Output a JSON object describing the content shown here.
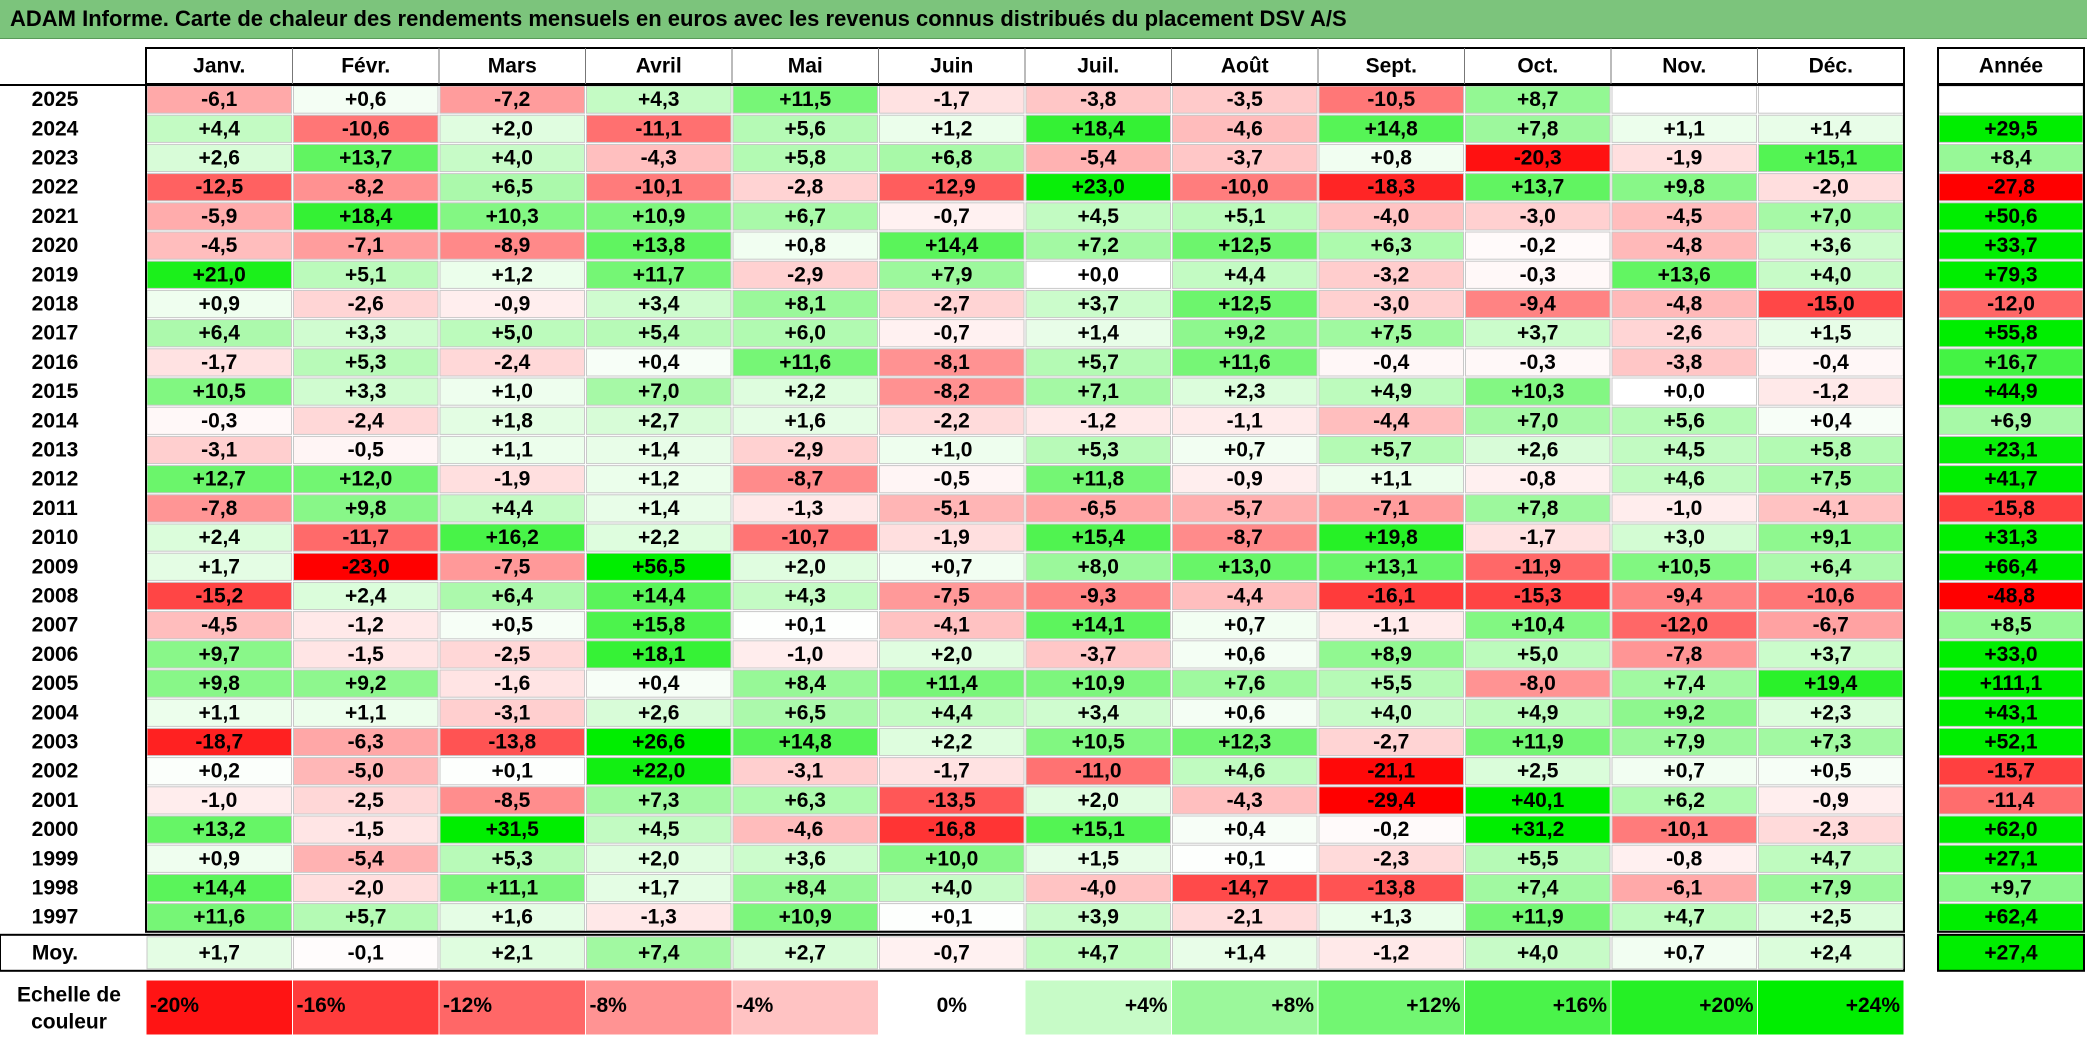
{
  "title": "ADAM Informe. Carte de chaleur des rendements mensuels en euros avec les revenus connus distribués du placement DSV A/S",
  "chart_data": {
    "type": "heatmap",
    "columns": [
      "Janv.",
      "Févr.",
      "Mars",
      "Avril",
      "Mai",
      "Juin",
      "Juil.",
      "Août",
      "Sept.",
      "Oct.",
      "Nov.",
      "Déc."
    ],
    "year_header": "Année",
    "rows": [
      {
        "year": "2025",
        "values": [
          "-6,1",
          "+0,6",
          "-7,2",
          "+4,3",
          "+11,5",
          "-1,7",
          "-3,8",
          "-3,5",
          "-10,5",
          "+8,7",
          null,
          null
        ],
        "annual": null
      },
      {
        "year": "2024",
        "values": [
          "+4,4",
          "-10,6",
          "+2,0",
          "-11,1",
          "+5,6",
          "+1,2",
          "+18,4",
          "-4,6",
          "+14,8",
          "+7,8",
          "+1,1",
          "+1,4"
        ],
        "annual": "+29,5"
      },
      {
        "year": "2023",
        "values": [
          "+2,6",
          "+13,7",
          "+4,0",
          "-4,3",
          "+5,8",
          "+6,8",
          "-5,4",
          "-3,7",
          "+0,8",
          "-20,3",
          "-1,9",
          "+15,1"
        ],
        "annual": "+8,4"
      },
      {
        "year": "2022",
        "values": [
          "-12,5",
          "-8,2",
          "+6,5",
          "-10,1",
          "-2,8",
          "-12,9",
          "+23,0",
          "-10,0",
          "-18,3",
          "+13,7",
          "+9,8",
          "-2,0"
        ],
        "annual": "-27,8"
      },
      {
        "year": "2021",
        "values": [
          "-5,9",
          "+18,4",
          "+10,3",
          "+10,9",
          "+6,7",
          "-0,7",
          "+4,5",
          "+5,1",
          "-4,0",
          "-3,0",
          "-4,5",
          "+7,0"
        ],
        "annual": "+50,6"
      },
      {
        "year": "2020",
        "values": [
          "-4,5",
          "-7,1",
          "-8,9",
          "+13,8",
          "+0,8",
          "+14,4",
          "+7,2",
          "+12,5",
          "+6,3",
          "-0,2",
          "-4,8",
          "+3,6"
        ],
        "annual": "+33,7"
      },
      {
        "year": "2019",
        "values": [
          "+21,0",
          "+5,1",
          "+1,2",
          "+11,7",
          "-2,9",
          "+7,9",
          "+0,0",
          "+4,4",
          "-3,2",
          "-0,3",
          "+13,6",
          "+4,0"
        ],
        "annual": "+79,3"
      },
      {
        "year": "2018",
        "values": [
          "+0,9",
          "-2,6",
          "-0,9",
          "+3,4",
          "+8,1",
          "-2,7",
          "+3,7",
          "+12,5",
          "-3,0",
          "-9,4",
          "-4,8",
          "-15,0"
        ],
        "annual": "-12,0"
      },
      {
        "year": "2017",
        "values": [
          "+6,4",
          "+3,3",
          "+5,0",
          "+5,4",
          "+6,0",
          "-0,7",
          "+1,4",
          "+9,2",
          "+7,5",
          "+3,7",
          "-2,6",
          "+1,5"
        ],
        "annual": "+55,8"
      },
      {
        "year": "2016",
        "values": [
          "-1,7",
          "+5,3",
          "-2,4",
          "+0,4",
          "+11,6",
          "-8,1",
          "+5,7",
          "+11,6",
          "-0,4",
          "-0,3",
          "-3,8",
          "-0,4"
        ],
        "annual": "+16,7"
      },
      {
        "year": "2015",
        "values": [
          "+10,5",
          "+3,3",
          "+1,0",
          "+7,0",
          "+2,2",
          "-8,2",
          "+7,1",
          "+2,3",
          "+4,9",
          "+10,3",
          "+0,0",
          "-1,2"
        ],
        "annual": "+44,9"
      },
      {
        "year": "2014",
        "values": [
          "-0,3",
          "-2,4",
          "+1,8",
          "+2,7",
          "+1,6",
          "-2,2",
          "-1,2",
          "-1,1",
          "-4,4",
          "+7,0",
          "+5,6",
          "+0,4"
        ],
        "annual": "+6,9"
      },
      {
        "year": "2013",
        "values": [
          "-3,1",
          "-0,5",
          "+1,1",
          "+1,4",
          "-2,9",
          "+1,0",
          "+5,3",
          "+0,7",
          "+5,7",
          "+2,6",
          "+4,5",
          "+5,8"
        ],
        "annual": "+23,1"
      },
      {
        "year": "2012",
        "values": [
          "+12,7",
          "+12,0",
          "-1,9",
          "+1,2",
          "-8,7",
          "-0,5",
          "+11,8",
          "-0,9",
          "+1,1",
          "-0,8",
          "+4,6",
          "+7,5"
        ],
        "annual": "+41,7"
      },
      {
        "year": "2011",
        "values": [
          "-7,8",
          "+9,8",
          "+4,4",
          "+1,4",
          "-1,3",
          "-5,1",
          "-6,5",
          "-5,7",
          "-7,1",
          "+7,8",
          "-1,0",
          "-4,1"
        ],
        "annual": "-15,8"
      },
      {
        "year": "2010",
        "values": [
          "+2,4",
          "-11,7",
          "+16,2",
          "+2,2",
          "-10,7",
          "-1,9",
          "+15,4",
          "-8,7",
          "+19,8",
          "-1,7",
          "+3,0",
          "+9,1"
        ],
        "annual": "+31,3"
      },
      {
        "year": "2009",
        "values": [
          "+1,7",
          "-23,0",
          "-7,5",
          "+56,5",
          "+2,0",
          "+0,7",
          "+8,0",
          "+13,0",
          "+13,1",
          "-11,9",
          "+10,5",
          "+6,4"
        ],
        "annual": "+66,4"
      },
      {
        "year": "2008",
        "values": [
          "-15,2",
          "+2,4",
          "+6,4",
          "+14,4",
          "+4,3",
          "-7,5",
          "-9,3",
          "-4,4",
          "-16,1",
          "-15,3",
          "-9,4",
          "-10,6"
        ],
        "annual": "-48,8"
      },
      {
        "year": "2007",
        "values": [
          "-4,5",
          "-1,2",
          "+0,5",
          "+15,8",
          "+0,1",
          "-4,1",
          "+14,1",
          "+0,7",
          "-1,1",
          "+10,4",
          "-12,0",
          "-6,7"
        ],
        "annual": "+8,5"
      },
      {
        "year": "2006",
        "values": [
          "+9,7",
          "-1,5",
          "-2,5",
          "+18,1",
          "-1,0",
          "+2,0",
          "-3,7",
          "+0,6",
          "+8,9",
          "+5,0",
          "-7,8",
          "+3,7"
        ],
        "annual": "+33,0"
      },
      {
        "year": "2005",
        "values": [
          "+9,8",
          "+9,2",
          "-1,6",
          "+0,4",
          "+8,4",
          "+11,4",
          "+10,9",
          "+7,6",
          "+5,5",
          "-8,0",
          "+7,4",
          "+19,4"
        ],
        "annual": "+111,1"
      },
      {
        "year": "2004",
        "values": [
          "+1,1",
          "+1,1",
          "-3,1",
          "+2,6",
          "+6,5",
          "+4,4",
          "+3,4",
          "+0,6",
          "+4,0",
          "+4,9",
          "+9,2",
          "+2,3"
        ],
        "annual": "+43,1"
      },
      {
        "year": "2003",
        "values": [
          "-18,7",
          "-6,3",
          "-13,8",
          "+26,6",
          "+14,8",
          "+2,2",
          "+10,5",
          "+12,3",
          "-2,7",
          "+11,9",
          "+7,9",
          "+7,3"
        ],
        "annual": "+52,1"
      },
      {
        "year": "2002",
        "values": [
          "+0,2",
          "-5,0",
          "+0,1",
          "+22,0",
          "-3,1",
          "-1,7",
          "-11,0",
          "+4,6",
          "-21,1",
          "+2,5",
          "+0,7",
          "+0,5"
        ],
        "annual": "-15,7"
      },
      {
        "year": "2001",
        "values": [
          "-1,0",
          "-2,5",
          "-8,5",
          "+7,3",
          "+6,3",
          "-13,5",
          "+2,0",
          "-4,3",
          "-29,4",
          "+40,1",
          "+6,2",
          "-0,9"
        ],
        "annual": "-11,4"
      },
      {
        "year": "2000",
        "values": [
          "+13,2",
          "-1,5",
          "+31,5",
          "+4,5",
          "-4,6",
          "-16,8",
          "+15,1",
          "+0,4",
          "-0,2",
          "+31,2",
          "-10,1",
          "-2,3"
        ],
        "annual": "+62,0"
      },
      {
        "year": "1999",
        "values": [
          "+0,9",
          "-5,4",
          "+5,3",
          "+2,0",
          "+3,6",
          "+10,0",
          "+1,5",
          "+0,1",
          "-2,3",
          "+5,5",
          "-0,8",
          "+4,7"
        ],
        "annual": "+27,1"
      },
      {
        "year": "1998",
        "values": [
          "+14,4",
          "-2,0",
          "+11,1",
          "+1,7",
          "+8,4",
          "+4,0",
          "-4,0",
          "-14,7",
          "-13,8",
          "+7,4",
          "-6,1",
          "+7,9"
        ],
        "annual": "+9,7"
      },
      {
        "year": "1997",
        "values": [
          "+11,6",
          "+5,7",
          "+1,6",
          "-1,3",
          "+10,9",
          "+0,1",
          "+3,9",
          "-2,1",
          "+1,3",
          "+11,9",
          "+4,7",
          "+2,5"
        ],
        "annual": "+62,4"
      }
    ],
    "average": {
      "label": "Moy.",
      "values": [
        "+1,7",
        "-0,1",
        "+2,1",
        "+7,4",
        "+2,7",
        "-0,7",
        "+4,7",
        "+1,4",
        "-1,2",
        "+4,0",
        "+0,7",
        "+2,4"
      ],
      "annual": "+27,4"
    },
    "scale": {
      "label_line1": "Echelle de",
      "label_line2": "couleur",
      "steps": [
        {
          "label": "-20%",
          "value": -20,
          "align": "left"
        },
        {
          "label": "-16%",
          "value": -16,
          "align": "left"
        },
        {
          "label": "-12%",
          "value": -12,
          "align": "left"
        },
        {
          "label": "-8%",
          "value": -8,
          "align": "left"
        },
        {
          "label": "-4%",
          "value": -4,
          "align": "left"
        },
        {
          "label": "0%",
          "value": 0,
          "align": "center"
        },
        {
          "label": "+4%",
          "value": 4,
          "align": "right"
        },
        {
          "label": "+8%",
          "value": 8,
          "align": "right"
        },
        {
          "label": "+12%",
          "value": 12,
          "align": "right"
        },
        {
          "label": "+16%",
          "value": 16,
          "align": "right"
        },
        {
          "label": "+20%",
          "value": 20,
          "align": "right"
        },
        {
          "label": "+24%",
          "value": 24,
          "align": "right"
        }
      ]
    },
    "colors": {
      "negative_max": "#ff0000",
      "neutral": "#ffffff",
      "positive_max": "#00ee00",
      "title_bar": "#7cc47c"
    }
  }
}
